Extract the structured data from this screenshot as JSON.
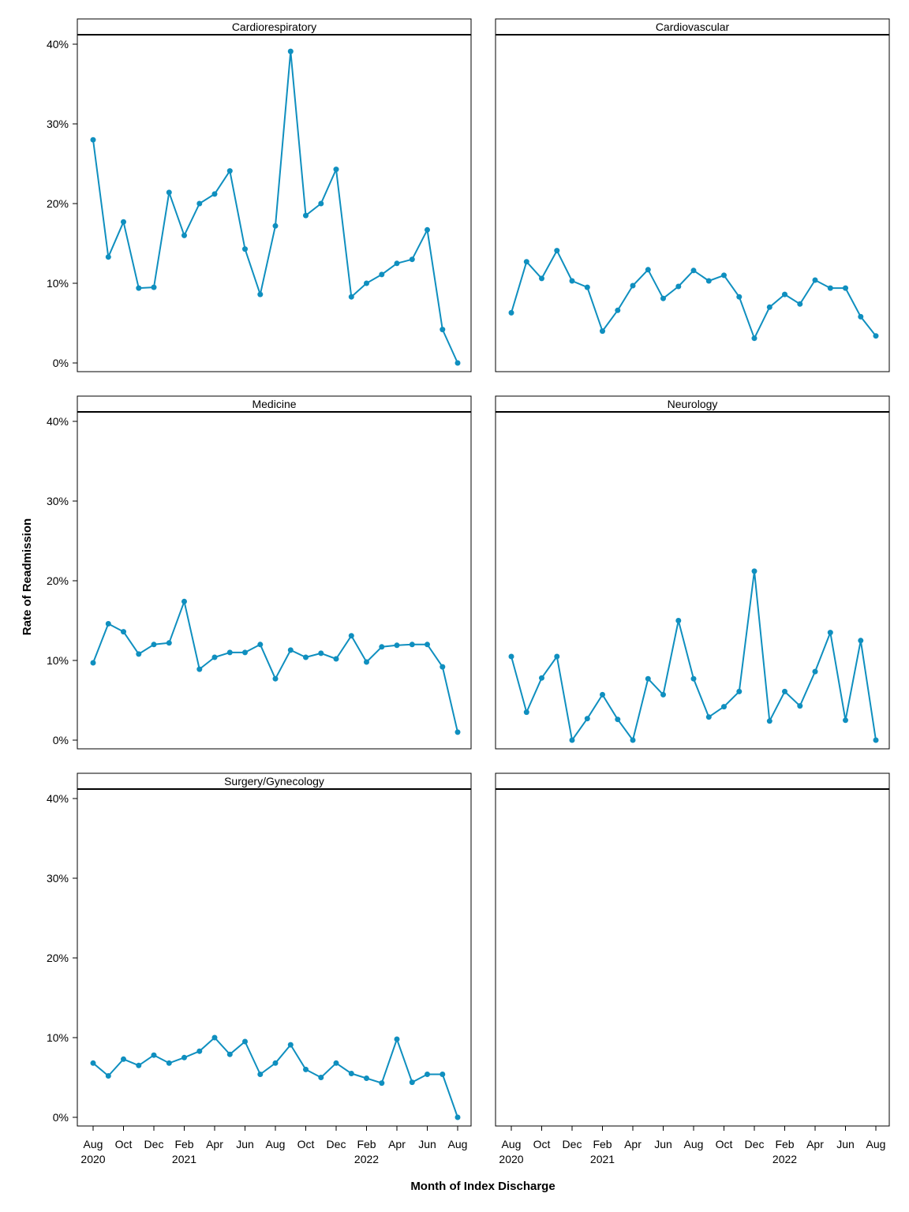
{
  "chart_data": {
    "type": "line",
    "xlabel": "Month of Index Discharge",
    "ylabel": "Rate of Readmission",
    "ylim": [
      0,
      42
    ],
    "y_ticks": [
      0,
      10,
      20,
      30,
      40
    ],
    "y_tick_labels": [
      "0%",
      "10%",
      "20%",
      "30%",
      "40%"
    ],
    "x": [
      "2020-08",
      "2020-09",
      "2020-10",
      "2020-11",
      "2020-12",
      "2021-01",
      "2021-02",
      "2021-03",
      "2021-04",
      "2021-05",
      "2021-06",
      "2021-07",
      "2021-08",
      "2021-09",
      "2021-10",
      "2021-11",
      "2021-12",
      "2022-01",
      "2022-02",
      "2022-03",
      "2022-04",
      "2022-05",
      "2022-06",
      "2022-07",
      "2022-08"
    ],
    "x_tick_labels": [
      {
        "month": "Aug",
        "year": "2020"
      },
      {
        "month": "Oct",
        "year": ""
      },
      {
        "month": "Dec",
        "year": ""
      },
      {
        "month": "Feb",
        "year": "2021"
      },
      {
        "month": "Apr",
        "year": ""
      },
      {
        "month": "Jun",
        "year": ""
      },
      {
        "month": "Aug",
        "year": ""
      },
      {
        "month": "Oct",
        "year": ""
      },
      {
        "month": "Dec",
        "year": ""
      },
      {
        "month": "Feb",
        "year": "2022"
      },
      {
        "month": "Apr",
        "year": ""
      },
      {
        "month": "Jun",
        "year": ""
      },
      {
        "month": "Aug",
        "year": ""
      }
    ],
    "line_color": "#0f8fbf",
    "grid": false,
    "panels": [
      {
        "title": "Cardiorespiratory",
        "values": [
          28.0,
          13.3,
          17.7,
          9.4,
          9.5,
          21.4,
          16.0,
          20.0,
          21.2,
          24.1,
          14.3,
          8.6,
          17.2,
          39.1,
          18.5,
          20.0,
          24.3,
          8.3,
          10.0,
          11.1,
          12.5,
          13.0,
          16.7,
          4.2,
          0.0
        ]
      },
      {
        "title": "Cardiovascular",
        "values": [
          6.3,
          12.7,
          10.6,
          14.1,
          10.3,
          9.5,
          4.0,
          6.6,
          9.7,
          11.7,
          8.1,
          9.6,
          11.6,
          10.3,
          11.0,
          8.3,
          3.1,
          7.0,
          8.6,
          7.4,
          10.4,
          9.4,
          9.4,
          5.8,
          3.4
        ]
      },
      {
        "title": "Medicine",
        "values": [
          9.7,
          14.6,
          13.6,
          10.8,
          12.0,
          12.2,
          17.4,
          8.9,
          10.4,
          11.0,
          11.0,
          12.0,
          7.7,
          11.3,
          10.4,
          10.9,
          10.2,
          13.1,
          9.8,
          11.7,
          11.9,
          12.0,
          12.0,
          9.2,
          1.0
        ]
      },
      {
        "title": "Neurology",
        "values": [
          10.5,
          3.5,
          7.8,
          10.5,
          0.0,
          2.7,
          5.7,
          2.6,
          0.0,
          7.7,
          5.7,
          15.0,
          7.7,
          2.9,
          4.2,
          6.1,
          21.2,
          2.4,
          6.1,
          4.3,
          8.6,
          13.5,
          2.5,
          12.5,
          0.0
        ]
      },
      {
        "title": "Surgery/Gynecology",
        "values": [
          6.8,
          5.2,
          7.3,
          6.5,
          7.8,
          6.8,
          7.5,
          8.3,
          10.0,
          7.9,
          9.5,
          5.4,
          6.8,
          9.1,
          6.0,
          5.0,
          6.8,
          5.5,
          4.9,
          4.3,
          9.8,
          4.4,
          5.4,
          5.4,
          0.0
        ]
      },
      {
        "title": "",
        "values": []
      }
    ]
  }
}
